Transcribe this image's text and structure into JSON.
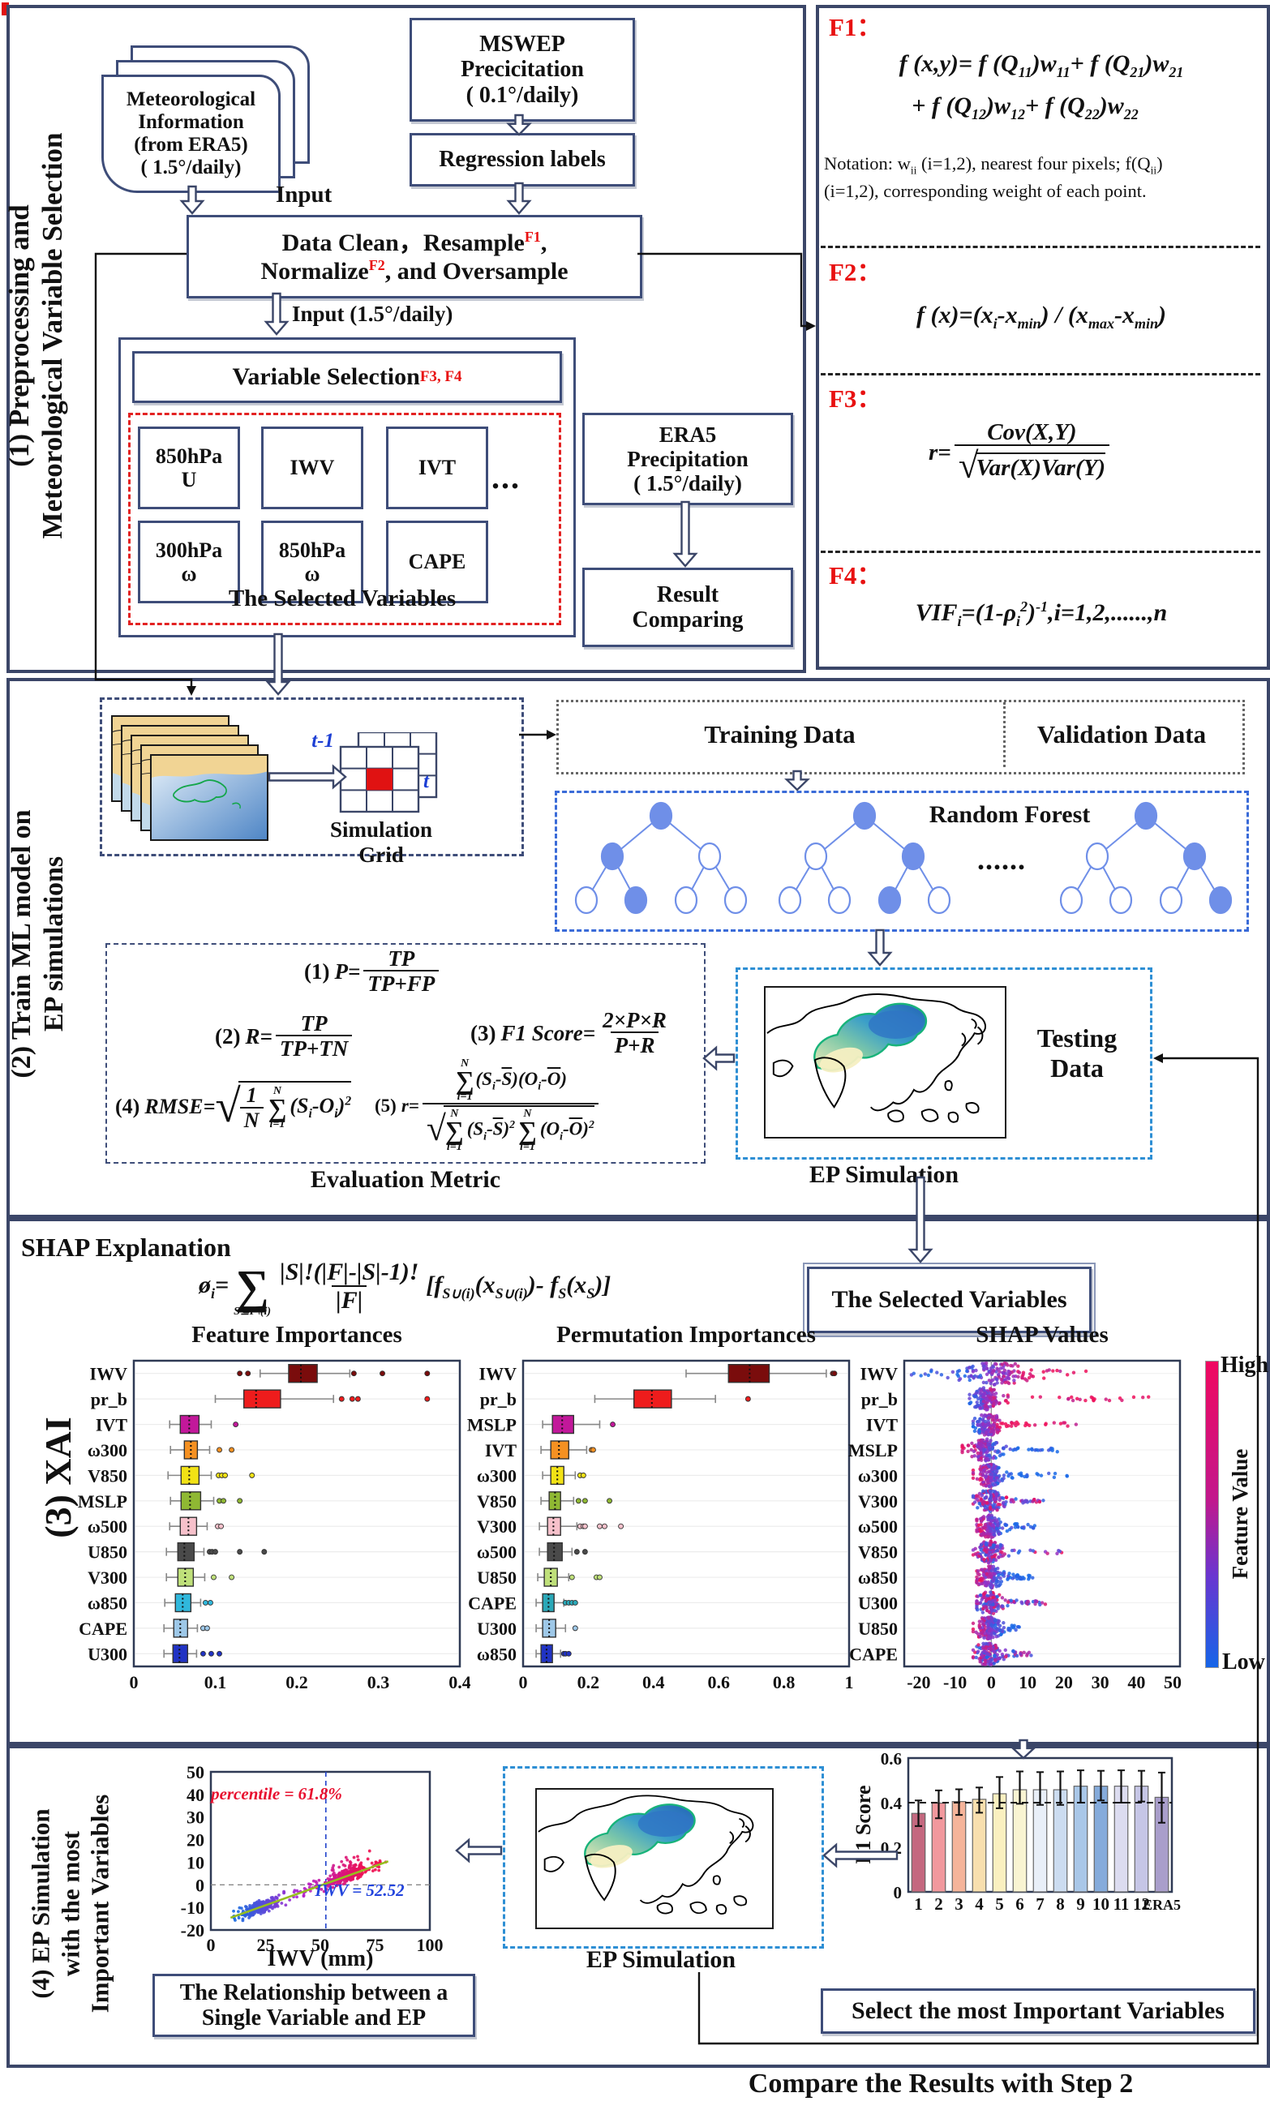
{
  "s1": {
    "title1": "(1) Preprocessing and",
    "title2": "Meteorological Variable Selection",
    "met_doc": [
      "Meteorological",
      "Information",
      "(from ERA5)",
      "( 1.5°/daily)"
    ],
    "mswep": [
      "MSWEP",
      "Precicitation",
      "( 0.1°/daily)"
    ],
    "regression": "Regression labels",
    "input1": "Input",
    "clean": {
      "a": "Data Clean，Resample",
      "a_sup": "F1",
      "a_end": ",",
      "b": "Normalize",
      "b_sup": "F2",
      "b_end": ", and Oversample"
    },
    "input2": "Input (1.5°/daily)",
    "varsel": "Variable Selection",
    "varsel_sup": "F3, F4",
    "variables": [
      [
        "850hPa",
        "U"
      ],
      [
        "IWV"
      ],
      [
        "IVT"
      ],
      [
        "300hPa",
        "ω"
      ],
      [
        "850hPa",
        "ω"
      ],
      [
        "CAPE"
      ]
    ],
    "dots": "...",
    "selected_caption": "The Selected Variables",
    "era5": [
      "ERA5",
      "Precipitation",
      "( 1.5°/daily)"
    ],
    "result": [
      "Result",
      "Comparing"
    ]
  },
  "fpanel": {
    "f1_label": "F1：",
    "f1_line1": "f (x,y)= f (Q_{11})w_{11}+ f (Q_{21})w_{21}",
    "f1_line2": "+ f (Q_{12})w_{12}+ f (Q_{22})w_{22}",
    "notation1": "Notation: w_{ii} (i=1,2), nearest four pixels; f(Q_{ii})",
    "notation2": "(i=1,2), corresponding weight of each point.",
    "f2_label": "F2：",
    "f2": "f (x)=(x_{i}-x_{min}) / (x_{max}-x_{min})",
    "f3_label": "F3：",
    "f3_pre": "r=",
    "f3_num": "Cov(X,Y)",
    "f3_den": "Var(X)Var(Y)",
    "f4_label": "F4：",
    "f4": "VIF_{i}=(1-ρ_{i}^{2})^{-1},i=1,2,......,n"
  },
  "s2": {
    "title1": "(2) Train ML model on",
    "title2": "EP simulations",
    "t_prev": "t-1",
    "t_now": "t",
    "grid_label": "Simulation Grid",
    "training": "Training Data",
    "validation": "Validation Data",
    "rf_title": "Random Forest",
    "rf_dots": "......",
    "m1": {
      "pre": "(1)",
      "lhs": "P=",
      "num": "TP",
      "den": "TP+FP"
    },
    "m2": {
      "pre": "(2)",
      "lhs": "R=",
      "num": "TP",
      "den": "TP+TN"
    },
    "m3": {
      "pre": "(3)",
      "lhs": "F1 Score=",
      "num": "2×P×R",
      "den": "P+R"
    },
    "m4": {
      "pre": "(4)",
      "lhs": "RMSE=",
      "frac_num": "1",
      "frac_den": "N",
      "sum_top": "N",
      "sum_bot": "i=1",
      "body": "(S_{i}-O_{i})^{2}"
    },
    "m5": {
      "pre": "(5)",
      "lhs": "r=",
      "sum_top": "N",
      "sum_bot": "i=1",
      "num_body": "(S_{i}-~S~)(O_{i}-~O~)",
      "den_body1": "(S_{i}-~S~)^{2}",
      "den_body2": "(O_{i}-~O~)^{2}"
    },
    "eval_caption": "Evaluation Metric",
    "testing1": "Testing",
    "testing2": "Data",
    "ep_sim": "EP Simulation"
  },
  "s3": {
    "title": "(3) XAI",
    "header": "SHAP Explanation",
    "shap": {
      "lhs": "ø_{i}=",
      "sum_bot": "S⊆F\\(i)",
      "num": "|S|!(|F|-|S|-1)!",
      "den": "|F|",
      "body": "[f_{S∪(i)}(x_{S∪(i)})- f_{S}(x_{S})]"
    },
    "selected_box": "The Selected Variables"
  },
  "s4": {
    "title": [
      "(4) EP Simulation",
      "with the most",
      "Important Variables"
    ],
    "rel1": "The Relationship between a",
    "rel2": "Single Variable and EP",
    "ep_sim": "EP Simulation",
    "select_caption": "Select the most Important Variables",
    "compare": "Compare the Results with Step 2"
  },
  "chart_data": [
    {
      "type": "box",
      "title": "Feature Importances",
      "xlim": [
        0,
        0.4
      ],
      "xticks": [
        0,
        0.1,
        0.2,
        0.3,
        0.4
      ],
      "rows": [
        {
          "label": "IWV",
          "c": "#7a0c0c",
          "w": [
            0.155,
            0.19,
            0.205,
            0.225,
            0.265
          ],
          "o": [
            0.13,
            0.14,
            0.27,
            0.305,
            0.36
          ]
        },
        {
          "label": "pr_b",
          "c": "#ee1c1c",
          "w": [
            0.1,
            0.135,
            0.15,
            0.18,
            0.245
          ],
          "o": [
            0.255,
            0.268,
            0.275,
            0.36
          ]
        },
        {
          "label": "IVT",
          "c": "#c2189a",
          "w": [
            0.044,
            0.057,
            0.068,
            0.08,
            0.095
          ],
          "o": [
            0.125
          ]
        },
        {
          "label": "ω300",
          "c": "#f59122",
          "w": [
            0.045,
            0.062,
            0.07,
            0.078,
            0.093
          ],
          "o": [
            0.105,
            0.12
          ]
        },
        {
          "label": "V850",
          "c": "#f2e215",
          "w": [
            0.042,
            0.058,
            0.068,
            0.08,
            0.095
          ],
          "o": [
            0.104,
            0.108,
            0.112,
            0.145
          ]
        },
        {
          "label": "MSLP",
          "c": "#8fb833",
          "w": [
            0.045,
            0.058,
            0.069,
            0.082,
            0.098
          ],
          "o": [
            0.105,
            0.11,
            0.13
          ]
        },
        {
          "label": "ω500",
          "c": "#f7c1cb",
          "w": [
            0.044,
            0.057,
            0.067,
            0.077,
            0.09
          ],
          "o": [
            0.103,
            0.107
          ]
        },
        {
          "label": "U850",
          "c": "#4a4a4a",
          "w": [
            0.04,
            0.054,
            0.062,
            0.074,
            0.086
          ],
          "o": [
            0.093,
            0.096,
            0.1,
            0.13,
            0.16
          ]
        },
        {
          "label": "V300",
          "c": "#bfe07a",
          "w": [
            0.04,
            0.054,
            0.063,
            0.073,
            0.087
          ],
          "o": [
            0.098,
            0.12
          ]
        },
        {
          "label": "ω850",
          "c": "#30b8dc",
          "w": [
            0.038,
            0.051,
            0.06,
            0.07,
            0.082
          ],
          "o": [
            0.088,
            0.094
          ]
        },
        {
          "label": "CAPE",
          "c": "#9ec8e8",
          "w": [
            0.037,
            0.049,
            0.057,
            0.066,
            0.078
          ],
          "o": [
            0.085,
            0.09
          ]
        },
        {
          "label": "U300",
          "c": "#2133c4",
          "w": [
            0.037,
            0.048,
            0.056,
            0.066,
            0.077
          ],
          "o": [
            0.085,
            0.095,
            0.105
          ]
        }
      ]
    },
    {
      "type": "box",
      "title": "Permutation Importances",
      "xlim": [
        0,
        1
      ],
      "xticks": [
        0,
        0.2,
        0.4,
        0.6,
        0.8,
        1
      ],
      "rows": [
        {
          "label": "IWV",
          "c": "#7a0c0c",
          "w": [
            0.5,
            0.63,
            0.695,
            0.755,
            0.93
          ],
          "o": [
            0.95,
            0.955
          ]
        },
        {
          "label": "pr_b",
          "c": "#ee1c1c",
          "w": [
            0.22,
            0.34,
            0.395,
            0.455,
            0.59
          ],
          "o": [
            0.69
          ]
        },
        {
          "label": "MSLP",
          "c": "#c2189a",
          "w": [
            0.06,
            0.09,
            0.12,
            0.155,
            0.235
          ],
          "o": [
            0.275
          ]
        },
        {
          "label": "IVT",
          "c": "#f59122",
          "w": [
            0.055,
            0.085,
            0.11,
            0.14,
            0.195
          ],
          "o": [
            0.21,
            0.215
          ]
        },
        {
          "label": "ω300",
          "c": "#f2e215",
          "w": [
            0.06,
            0.085,
            0.105,
            0.125,
            0.16
          ],
          "o": [
            0.175,
            0.185
          ]
        },
        {
          "label": "V850",
          "c": "#8fb833",
          "w": [
            0.055,
            0.08,
            0.098,
            0.115,
            0.155
          ],
          "o": [
            0.17,
            0.19,
            0.265
          ]
        },
        {
          "label": "V300",
          "c": "#f7c1cb",
          "w": [
            0.05,
            0.075,
            0.093,
            0.115,
            0.165
          ],
          "o": [
            0.175,
            0.185,
            0.19,
            0.235,
            0.25,
            0.3
          ]
        },
        {
          "label": "ω500",
          "c": "#4a4a4a",
          "w": [
            0.05,
            0.075,
            0.095,
            0.12,
            0.15
          ],
          "o": [
            0.165,
            0.19
          ]
        },
        {
          "label": "U850",
          "c": "#bfe07a",
          "w": [
            0.045,
            0.065,
            0.085,
            0.105,
            0.14
          ],
          "o": [
            0.15,
            0.225,
            0.235
          ]
        },
        {
          "label": "CAPE",
          "c": "#2aa8b8",
          "w": [
            0.04,
            0.06,
            0.078,
            0.095,
            0.125
          ],
          "o": [
            0.13,
            0.14,
            0.15,
            0.16
          ]
        },
        {
          "label": "U300",
          "c": "#9ec8e8",
          "w": [
            0.04,
            0.06,
            0.08,
            0.1,
            0.13
          ],
          "o": [
            0.16
          ]
        },
        {
          "label": "ω850",
          "c": "#2133c4",
          "w": [
            0.04,
            0.055,
            0.072,
            0.09,
            0.115
          ],
          "o": [
            0.125,
            0.13,
            0.14
          ]
        }
      ]
    },
    {
      "type": "beeswarm",
      "title": "SHAP Values",
      "xlim": [
        -24,
        52
      ],
      "xticks": [
        -20,
        -10,
        0,
        10,
        20,
        30,
        40,
        50
      ],
      "colorbar": {
        "high": "High",
        "low": "Low",
        "label": "Feature Value"
      },
      "rows": [
        {
          "label": "IWV",
          "mode": 1,
          "w": 6,
          "min": -22,
          "max": 28,
          "pol": "pos",
          "sym": 1
        },
        {
          "label": "pr_b",
          "mode": -1.5,
          "w": 2.2,
          "min": -6,
          "max": 47,
          "pol": "pos"
        },
        {
          "label": "IVT",
          "mode": -1,
          "w": 2,
          "min": -5,
          "max": 24,
          "pol": "pos"
        },
        {
          "label": "MSLP",
          "mode": -2,
          "w": 2.5,
          "min": -8,
          "max": 20,
          "pol": "neg"
        },
        {
          "label": "ω300",
          "mode": -0.5,
          "w": 2,
          "min": -5,
          "max": 25,
          "pol": "neg"
        },
        {
          "label": "V300",
          "mode": -0.5,
          "w": 2,
          "min": -5,
          "max": 15,
          "pol": "mix"
        },
        {
          "label": "ω500",
          "mode": -0.5,
          "w": 2,
          "min": -4,
          "max": 12,
          "pol": "neg"
        },
        {
          "label": "V850",
          "mode": -0.5,
          "w": 2,
          "min": -5,
          "max": 23,
          "pol": "mix"
        },
        {
          "label": "ω850",
          "mode": -0.5,
          "w": 2,
          "min": -4,
          "max": 13,
          "pol": "neg"
        },
        {
          "label": "U300",
          "mode": -0.5,
          "w": 2,
          "min": -4,
          "max": 15,
          "pol": "mix"
        },
        {
          "label": "U850",
          "mode": -1,
          "w": 2,
          "min": -5,
          "max": 8,
          "pol": "neg"
        },
        {
          "label": "CAPE",
          "mode": -1,
          "w": 2.2,
          "min": -5,
          "max": 11,
          "pol": "mix"
        }
      ]
    },
    {
      "type": "scatter",
      "xlabel": "IWV (mm)",
      "xlim": [
        0,
        100
      ],
      "ylim": [
        -20,
        50
      ],
      "xticks": [
        0,
        25,
        50,
        75,
        100
      ],
      "yticks": [
        -20,
        -10,
        0,
        10,
        20,
        30,
        40,
        50
      ],
      "vline": 52.52,
      "hline": 0,
      "annotations": {
        "percentile": "percentile = 61.8%",
        "iwv": "IWV = 52.52"
      },
      "trend": {
        "x0": 9,
        "y0": -14.6,
        "x1": 81,
        "y1": 10.4,
        "color": "#96be1e"
      },
      "n_points": 560
    },
    {
      "type": "bar",
      "ylabel": "F1 Score",
      "ylim": [
        0,
        0.6
      ],
      "yticks": [
        0,
        0.2,
        0.4,
        0.6
      ],
      "ref_line": 0.4,
      "categories": [
        "1",
        "2",
        "3",
        "4",
        "5",
        "6",
        "7",
        "8",
        "9",
        "10",
        "11",
        "12",
        "ERA5"
      ],
      "values": [
        0.352,
        0.398,
        0.405,
        0.415,
        0.44,
        0.458,
        0.458,
        0.458,
        0.474,
        0.474,
        0.474,
        0.474,
        0.424
      ],
      "err_lo": [
        0.295,
        0.33,
        0.345,
        0.355,
        0.375,
        0.395,
        0.39,
        0.39,
        0.4,
        0.41,
        0.4,
        0.405,
        0.31
      ],
      "err_hi": [
        0.41,
        0.455,
        0.46,
        0.468,
        0.515,
        0.54,
        0.537,
        0.54,
        0.545,
        0.543,
        0.545,
        0.543,
        0.535
      ],
      "colors": [
        "#c4687f",
        "#f1989d",
        "#f5b49a",
        "#f8dfae",
        "#faf0c0",
        "#f9f4d2",
        "#e9eff8",
        "#ccdcf0",
        "#a9c7e8",
        "#85abdb",
        "#dcdcf0",
        "#c6c6e6",
        "#a99ecb"
      ]
    }
  ]
}
